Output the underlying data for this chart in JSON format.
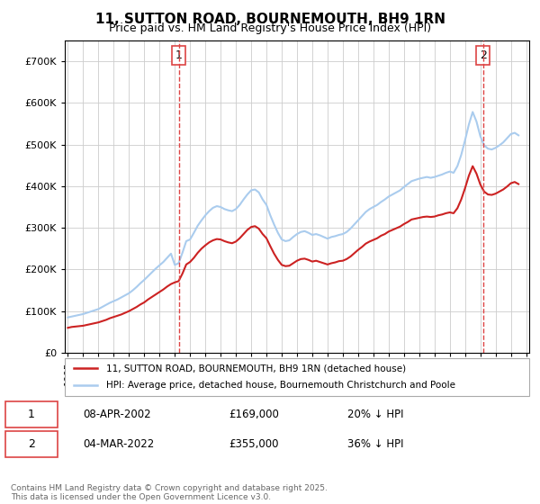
{
  "title": "11, SUTTON ROAD, BOURNEMOUTH, BH9 1RN",
  "subtitle": "Price paid vs. HM Land Registry's House Price Index (HPI)",
  "ylabel": "",
  "ylim": [
    0,
    750000
  ],
  "yticks": [
    0,
    100000,
    200000,
    300000,
    400000,
    500000,
    600000,
    700000
  ],
  "ytick_labels": [
    "£0",
    "£100K",
    "£200K",
    "£300K",
    "£400K",
    "£500K",
    "£600K",
    "£700K"
  ],
  "hpi_color": "#aaccee",
  "price_color": "#cc2222",
  "vline_color": "#dd4444",
  "grid_color": "#cccccc",
  "background_color": "#ffffff",
  "legend_label_price": "11, SUTTON ROAD, BOURNEMOUTH, BH9 1RN (detached house)",
  "legend_label_hpi": "HPI: Average price, detached house, Bournemouth Christchurch and Poole",
  "annotation1_label": "1",
  "annotation1_date": "08-APR-2002",
  "annotation1_price": "£169,000",
  "annotation1_pct": "20% ↓ HPI",
  "annotation2_label": "2",
  "annotation2_date": "04-MAR-2022",
  "annotation2_price": "£355,000",
  "annotation2_pct": "36% ↓ HPI",
  "footer": "Contains HM Land Registry data © Crown copyright and database right 2025.\nThis data is licensed under the Open Government Licence v3.0.",
  "sale1_x": 2002.27,
  "sale2_x": 2022.17,
  "hpi_x": [
    1995.0,
    1995.25,
    1995.5,
    1995.75,
    1996.0,
    1996.25,
    1996.5,
    1996.75,
    1997.0,
    1997.25,
    1997.5,
    1997.75,
    1998.0,
    1998.25,
    1998.5,
    1998.75,
    1999.0,
    1999.25,
    1999.5,
    1999.75,
    2000.0,
    2000.25,
    2000.5,
    2000.75,
    2001.0,
    2001.25,
    2001.5,
    2001.75,
    2002.0,
    2002.25,
    2002.5,
    2002.75,
    2003.0,
    2003.25,
    2003.5,
    2003.75,
    2004.0,
    2004.25,
    2004.5,
    2004.75,
    2005.0,
    2005.25,
    2005.5,
    2005.75,
    2006.0,
    2006.25,
    2006.5,
    2006.75,
    2007.0,
    2007.25,
    2007.5,
    2007.75,
    2008.0,
    2008.25,
    2008.5,
    2008.75,
    2009.0,
    2009.25,
    2009.5,
    2009.75,
    2010.0,
    2010.25,
    2010.5,
    2010.75,
    2011.0,
    2011.25,
    2011.5,
    2011.75,
    2012.0,
    2012.25,
    2012.5,
    2012.75,
    2013.0,
    2013.25,
    2013.5,
    2013.75,
    2014.0,
    2014.25,
    2014.5,
    2014.75,
    2015.0,
    2015.25,
    2015.5,
    2015.75,
    2016.0,
    2016.25,
    2016.5,
    2016.75,
    2017.0,
    2017.25,
    2017.5,
    2017.75,
    2018.0,
    2018.25,
    2018.5,
    2018.75,
    2019.0,
    2019.25,
    2019.5,
    2019.75,
    2020.0,
    2020.25,
    2020.5,
    2020.75,
    2021.0,
    2021.25,
    2021.5,
    2021.75,
    2022.0,
    2022.25,
    2022.5,
    2022.75,
    2023.0,
    2023.25,
    2023.5,
    2023.75,
    2024.0,
    2024.25,
    2024.5
  ],
  "hpi_y": [
    85000,
    87000,
    89000,
    91000,
    93000,
    96000,
    99000,
    102000,
    105000,
    110000,
    115000,
    120000,
    124000,
    128000,
    133000,
    138000,
    143000,
    150000,
    158000,
    167000,
    175000,
    184000,
    193000,
    202000,
    210000,
    218000,
    228000,
    238000,
    211000,
    215000,
    240000,
    268000,
    272000,
    288000,
    305000,
    318000,
    330000,
    340000,
    348000,
    352000,
    350000,
    345000,
    342000,
    340000,
    345000,
    355000,
    368000,
    380000,
    390000,
    392000,
    385000,
    368000,
    355000,
    330000,
    308000,
    288000,
    272000,
    268000,
    270000,
    278000,
    285000,
    290000,
    292000,
    288000,
    283000,
    285000,
    282000,
    278000,
    274000,
    278000,
    280000,
    283000,
    285000,
    290000,
    298000,
    308000,
    318000,
    328000,
    338000,
    345000,
    350000,
    355000,
    362000,
    368000,
    375000,
    380000,
    385000,
    390000,
    398000,
    405000,
    412000,
    415000,
    418000,
    420000,
    422000,
    420000,
    422000,
    425000,
    428000,
    432000,
    435000,
    432000,
    448000,
    475000,
    510000,
    548000,
    578000,
    555000,
    520000,
    498000,
    490000,
    488000,
    492000,
    498000,
    505000,
    515000,
    525000,
    528000,
    522000
  ],
  "price_x": [
    1995.0,
    1995.25,
    1995.5,
    1995.75,
    1996.0,
    1996.25,
    1996.5,
    1996.75,
    1997.0,
    1997.25,
    1997.5,
    1997.75,
    1998.0,
    1998.25,
    1998.5,
    1998.75,
    1999.0,
    1999.25,
    1999.5,
    1999.75,
    2000.0,
    2000.25,
    2000.5,
    2000.75,
    2001.0,
    2001.25,
    2001.5,
    2001.75,
    2002.0,
    2002.25,
    2002.5,
    2002.75,
    2003.0,
    2003.25,
    2003.5,
    2003.75,
    2004.0,
    2004.25,
    2004.5,
    2004.75,
    2005.0,
    2005.25,
    2005.5,
    2005.75,
    2006.0,
    2006.25,
    2006.5,
    2006.75,
    2007.0,
    2007.25,
    2007.5,
    2007.75,
    2008.0,
    2008.25,
    2008.5,
    2008.75,
    2009.0,
    2009.25,
    2009.5,
    2009.75,
    2010.0,
    2010.25,
    2010.5,
    2010.75,
    2011.0,
    2011.25,
    2011.5,
    2011.75,
    2012.0,
    2012.25,
    2012.5,
    2012.75,
    2013.0,
    2013.25,
    2013.5,
    2013.75,
    2014.0,
    2014.25,
    2014.5,
    2014.75,
    2015.0,
    2015.25,
    2015.5,
    2015.75,
    2016.0,
    2016.25,
    2016.5,
    2016.75,
    2017.0,
    2017.25,
    2017.5,
    2017.75,
    2018.0,
    2018.25,
    2018.5,
    2018.75,
    2019.0,
    2019.25,
    2019.5,
    2019.75,
    2020.0,
    2020.25,
    2020.5,
    2020.75,
    2021.0,
    2021.25,
    2021.5,
    2021.75,
    2022.0,
    2022.25,
    2022.5,
    2022.75,
    2023.0,
    2023.25,
    2023.5,
    2023.75,
    2024.0,
    2024.25,
    2024.5
  ],
  "price_y": [
    60000,
    62000,
    63000,
    64000,
    65000,
    67000,
    69000,
    71000,
    73000,
    76000,
    79000,
    83000,
    86000,
    89000,
    92000,
    96000,
    100000,
    105000,
    110000,
    116000,
    121000,
    128000,
    134000,
    140000,
    146000,
    152000,
    159000,
    165000,
    169000,
    172000,
    190000,
    212000,
    218000,
    228000,
    240000,
    250000,
    258000,
    265000,
    270000,
    273000,
    272000,
    268000,
    265000,
    263000,
    267000,
    275000,
    285000,
    295000,
    302000,
    304000,
    298000,
    285000,
    275000,
    256000,
    238000,
    223000,
    211000,
    208000,
    209000,
    215000,
    221000,
    225000,
    226000,
    223000,
    219000,
    221000,
    218000,
    215000,
    212000,
    215000,
    217000,
    220000,
    221000,
    225000,
    231000,
    239000,
    247000,
    254000,
    262000,
    267000,
    271000,
    275000,
    281000,
    285000,
    291000,
    295000,
    299000,
    303000,
    309000,
    314000,
    320000,
    322000,
    324000,
    326000,
    327000,
    326000,
    327000,
    330000,
    332000,
    335000,
    337000,
    335000,
    347000,
    368000,
    395000,
    425000,
    448000,
    430000,
    404000,
    387000,
    380000,
    379000,
    382000,
    387000,
    392000,
    399000,
    407000,
    410000,
    405000
  ]
}
